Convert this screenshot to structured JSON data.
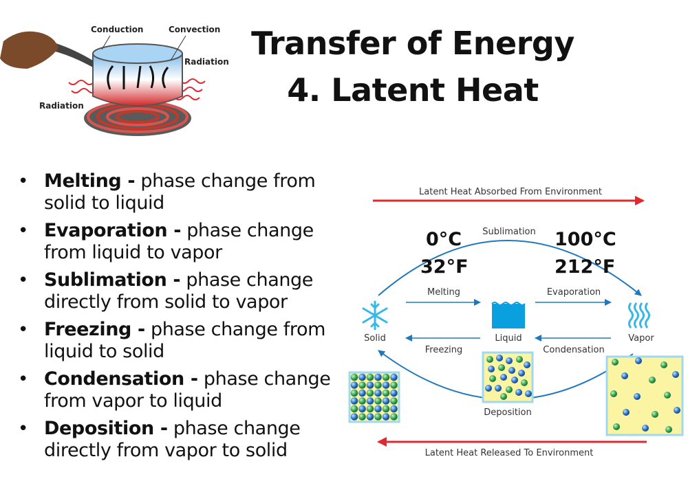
{
  "title": {
    "line1": "Transfer of Energy",
    "line2": "4. Latent Heat"
  },
  "pot_illustration": {
    "labels": {
      "conduction": "Conduction",
      "convection": "Convection",
      "radiation_right": "Radiation",
      "radiation_left": "Radiation"
    }
  },
  "definitions": [
    {
      "term": "Melting -",
      "text": " phase change from solid to liquid"
    },
    {
      "term": "Evaporation -",
      "text": " phase change from liquid to vapor"
    },
    {
      "term": "Sublimation -",
      "text": " phase change directly from solid to vapor"
    },
    {
      "term": "Freezing -",
      "text": " phase change from liquid to solid"
    },
    {
      "term": "Condensation -",
      "text": " phase change from vapor to liquid"
    },
    {
      "term": "Deposition -",
      "text": " phase change directly from vapor to solid"
    }
  ],
  "phase_diagram": {
    "top_arrow": "Latent Heat Absorbed From Environment",
    "bottom_arrow": "Latent Heat Released To Environment",
    "sublimation": "Sublimation",
    "deposition": "Deposition",
    "melting": "Melting",
    "evaporation": "Evaporation",
    "freezing": "Freezing",
    "condensation": "Condensation",
    "solid": "Solid",
    "liquid": "Liquid",
    "vapor": "Vapor",
    "temp_left_c": "0°C",
    "temp_left_f": "32°F",
    "temp_right_c": "100°C",
    "temp_right_f": "212°F"
  },
  "colors": {
    "red_arrow": "#e0282e",
    "blue_arrow": "#1f78bd",
    "molecule_box": "#fbf4a2",
    "ice_blue": "#35b8e8"
  }
}
